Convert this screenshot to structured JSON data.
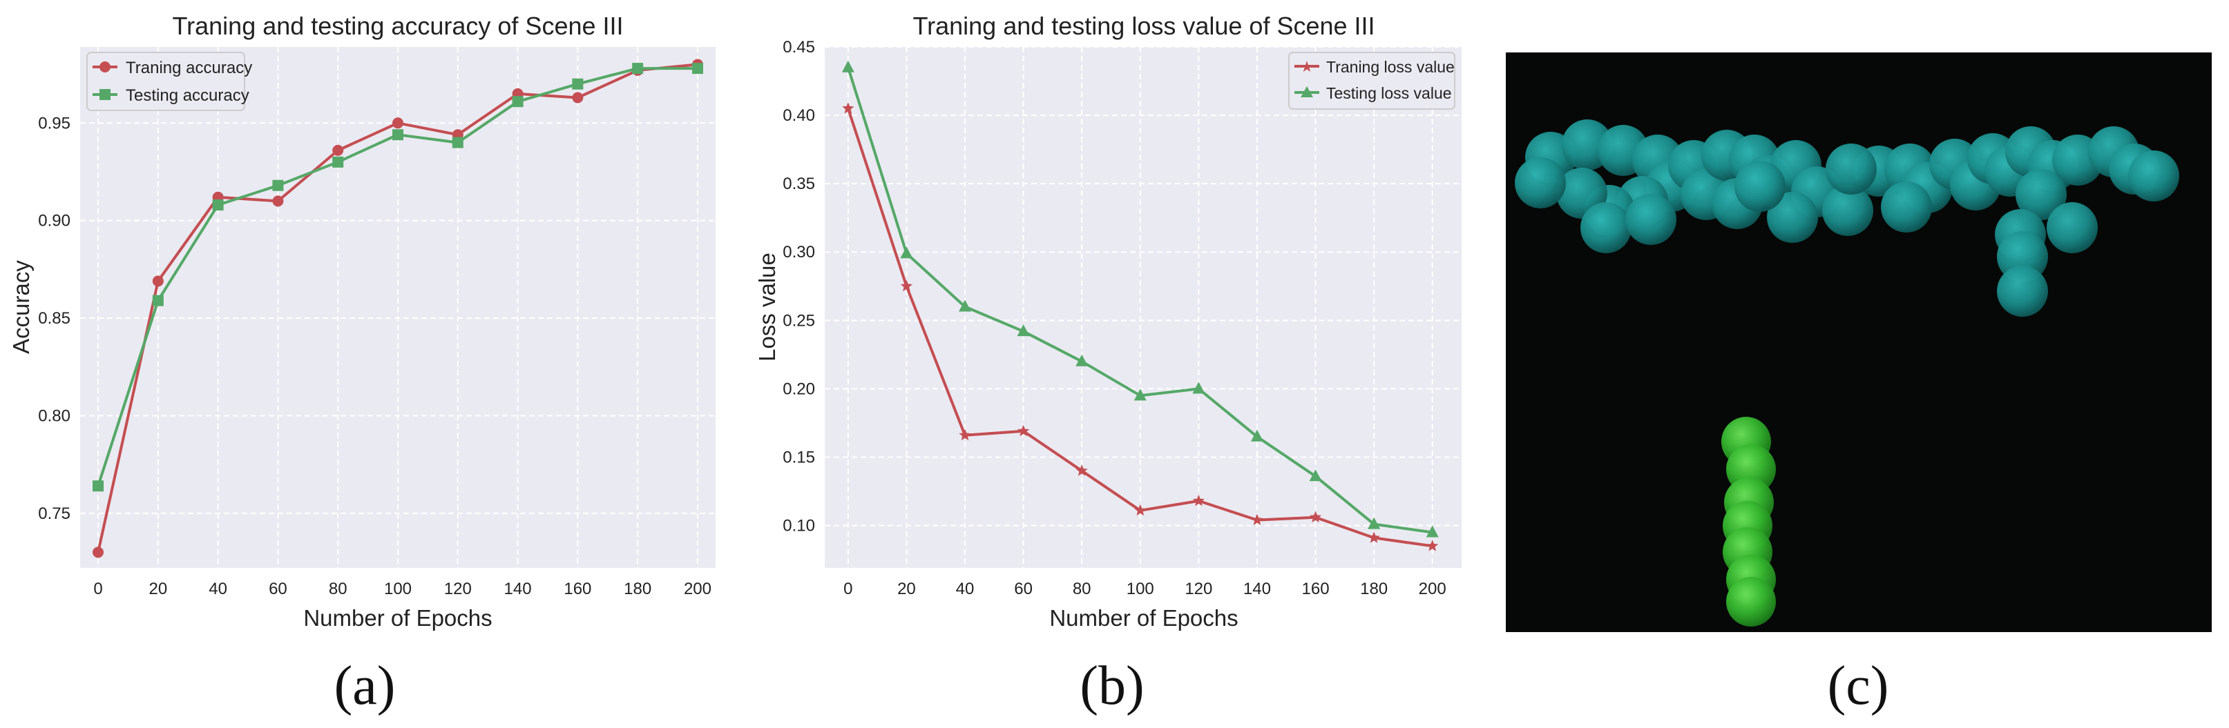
{
  "chart_data": [
    {
      "type": "line",
      "title": "Traning and testing accuracy of Scene III",
      "xlabel": "Number of Epochs",
      "ylabel": "Accuracy",
      "x": [
        0,
        20,
        40,
        60,
        80,
        100,
        120,
        140,
        160,
        180,
        200
      ],
      "xticks": [
        "0",
        "20",
        "40",
        "60",
        "80",
        "100",
        "120",
        "140",
        "160",
        "180",
        "200"
      ],
      "yticks": [
        "0.75",
        "0.80",
        "0.85",
        "0.90",
        "0.95"
      ],
      "ytick_values": [
        0.75,
        0.8,
        0.85,
        0.9,
        0.95
      ],
      "xlim": [
        -6,
        206
      ],
      "ylim": [
        0.722,
        0.989
      ],
      "legend_position": "top-left",
      "grid": true,
      "series": [
        {
          "name": "Traning accuracy",
          "color": "#c44e52",
          "marker": "circle",
          "values": [
            0.73,
            0.869,
            0.912,
            0.91,
            0.936,
            0.95,
            0.944,
            0.965,
            0.963,
            0.977,
            0.98
          ]
        },
        {
          "name": "Testing accuracy",
          "color": "#55a868",
          "marker": "square",
          "values": [
            0.764,
            0.859,
            0.908,
            0.918,
            0.93,
            0.944,
            0.94,
            0.961,
            0.97,
            0.978,
            0.978
          ]
        }
      ],
      "panel_label": "(a)"
    },
    {
      "type": "line",
      "title": "Traning and testing loss value of Scene III",
      "xlabel": "Number of Epochs",
      "ylabel": "Loss value",
      "x": [
        0,
        20,
        40,
        60,
        80,
        100,
        120,
        140,
        160,
        180,
        200
      ],
      "xticks": [
        "0",
        "20",
        "40",
        "60",
        "80",
        "100",
        "120",
        "140",
        "160",
        "180",
        "200"
      ],
      "yticks": [
        "0.10",
        "0.15",
        "0.20",
        "0.25",
        "0.30",
        "0.35",
        "0.40",
        "0.45"
      ],
      "ytick_values": [
        0.1,
        0.15,
        0.2,
        0.25,
        0.3,
        0.35,
        0.4,
        0.45
      ],
      "xlim": [
        -8,
        210
      ],
      "ylim": [
        0.069,
        0.45
      ],
      "legend_position": "top-right",
      "grid": true,
      "series": [
        {
          "name": "Traning loss value",
          "color": "#c44e52",
          "marker": "star",
          "values": [
            0.405,
            0.275,
            0.166,
            0.169,
            0.14,
            0.111,
            0.118,
            0.104,
            0.106,
            0.091,
            0.085
          ]
        },
        {
          "name": "Testing loss value",
          "color": "#55a868",
          "marker": "triangle",
          "values": [
            0.435,
            0.299,
            0.26,
            0.242,
            0.22,
            0.195,
            0.2,
            0.165,
            0.136,
            0.101,
            0.095
          ]
        }
      ],
      "panel_label": "(b)"
    }
  ],
  "image_panel": {
    "panel_label": "(c)",
    "description_colors": {
      "background": "#050807",
      "teal": "#1c9a9a",
      "green": "#3fc23a"
    }
  }
}
